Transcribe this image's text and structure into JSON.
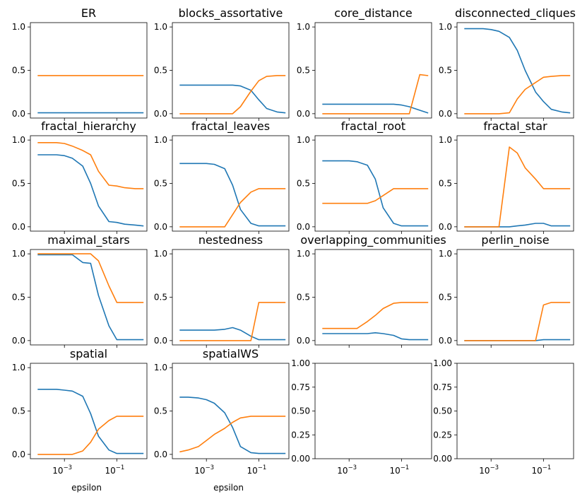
{
  "figure": {
    "background": "#ffffff"
  },
  "colors": {
    "series_a": "#1f77b4",
    "series_b": "#ff7f0e"
  },
  "chart_data": [
    {
      "type": "line",
      "title": "ER",
      "xlabel": "",
      "xscale": "log",
      "x": [
        0.0001,
        0.0002,
        0.0005,
        0.001,
        0.002,
        0.005,
        0.01,
        0.02,
        0.05,
        0.1,
        0.2,
        0.5,
        1.0
      ],
      "series": [
        {
          "values": [
            0.01,
            0.01,
            0.01,
            0.01,
            0.01,
            0.01,
            0.01,
            0.01,
            0.01,
            0.01,
            0.01,
            0.01,
            0.01
          ]
        },
        {
          "values": [
            0.44,
            0.44,
            0.44,
            0.44,
            0.44,
            0.44,
            0.44,
            0.44,
            0.44,
            0.44,
            0.44,
            0.44,
            0.44
          ]
        }
      ],
      "ylim": [
        -0.05,
        1.05
      ],
      "yticks": [
        "0.0",
        "0.5",
        "1.0"
      ],
      "xticks": []
    },
    {
      "type": "line",
      "title": "blocks_assortative",
      "xlabel": "",
      "xscale": "log",
      "x": [
        0.0001,
        0.0002,
        0.0005,
        0.001,
        0.002,
        0.005,
        0.01,
        0.02,
        0.05,
        0.1,
        0.2,
        0.5,
        1.0
      ],
      "series": [
        {
          "values": [
            0.33,
            0.33,
            0.33,
            0.33,
            0.33,
            0.33,
            0.33,
            0.32,
            0.27,
            0.16,
            0.06,
            0.02,
            0.01
          ]
        },
        {
          "values": [
            0.0,
            0.0,
            0.0,
            0.0,
            0.0,
            0.0,
            0.0,
            0.08,
            0.26,
            0.38,
            0.43,
            0.44,
            0.44
          ]
        }
      ],
      "ylim": [
        -0.05,
        1.05
      ],
      "yticks": [
        "0.0",
        "0.5",
        "1.0"
      ],
      "xticks": []
    },
    {
      "type": "line",
      "title": "core_distance",
      "xlabel": "",
      "xscale": "log",
      "x": [
        0.0001,
        0.0002,
        0.0005,
        0.001,
        0.002,
        0.005,
        0.01,
        0.02,
        0.05,
        0.1,
        0.2,
        0.5,
        1.0
      ],
      "series": [
        {
          "values": [
            0.11,
            0.11,
            0.11,
            0.11,
            0.11,
            0.11,
            0.11,
            0.11,
            0.11,
            0.1,
            0.08,
            0.04,
            0.01
          ]
        },
        {
          "values": [
            0.0,
            0.0,
            0.0,
            0.0,
            0.0,
            0.0,
            0.0,
            0.0,
            0.0,
            0.0,
            0.0,
            0.45,
            0.44
          ]
        }
      ],
      "ylim": [
        -0.05,
        1.05
      ],
      "yticks": [
        "0.0",
        "0.5",
        "1.0"
      ],
      "xticks": []
    },
    {
      "type": "line",
      "title": "disconnected_cliques",
      "xlabel": "",
      "xscale": "log",
      "x": [
        0.0001,
        0.0002,
        0.0005,
        0.001,
        0.002,
        0.005,
        0.01,
        0.02,
        0.05,
        0.1,
        0.2,
        0.5,
        1.0
      ],
      "series": [
        {
          "values": [
            0.98,
            0.98,
            0.98,
            0.97,
            0.95,
            0.88,
            0.73,
            0.5,
            0.25,
            0.14,
            0.05,
            0.02,
            0.01
          ]
        },
        {
          "values": [
            0.0,
            0.0,
            0.0,
            0.0,
            0.0,
            0.01,
            0.17,
            0.28,
            0.36,
            0.42,
            0.43,
            0.44,
            0.44
          ]
        }
      ],
      "ylim": [
        -0.05,
        1.05
      ],
      "yticks": [
        "0.0",
        "0.5",
        "1.0"
      ],
      "xticks": []
    },
    {
      "type": "line",
      "title": "fractal_hierarchy",
      "xlabel": "",
      "xscale": "log",
      "x": [
        0.0001,
        0.0002,
        0.0005,
        0.001,
        0.002,
        0.005,
        0.01,
        0.02,
        0.05,
        0.1,
        0.2,
        0.5,
        1.0
      ],
      "series": [
        {
          "values": [
            0.83,
            0.83,
            0.83,
            0.82,
            0.79,
            0.7,
            0.5,
            0.24,
            0.06,
            0.05,
            0.03,
            0.02,
            0.01
          ]
        },
        {
          "values": [
            0.97,
            0.97,
            0.97,
            0.96,
            0.93,
            0.88,
            0.83,
            0.64,
            0.48,
            0.47,
            0.45,
            0.44,
            0.44
          ]
        }
      ],
      "ylim": [
        -0.05,
        1.05
      ],
      "yticks": [
        "0.0",
        "0.5",
        "1.0"
      ],
      "xticks": []
    },
    {
      "type": "line",
      "title": "fractal_leaves",
      "xlabel": "",
      "xscale": "log",
      "x": [
        0.0001,
        0.0002,
        0.0005,
        0.001,
        0.002,
        0.005,
        0.01,
        0.02,
        0.05,
        0.1,
        0.2,
        0.5,
        1.0
      ],
      "series": [
        {
          "values": [
            0.73,
            0.73,
            0.73,
            0.73,
            0.72,
            0.67,
            0.48,
            0.2,
            0.04,
            0.01,
            0.01,
            0.01,
            0.01
          ]
        },
        {
          "values": [
            0.0,
            0.0,
            0.0,
            0.0,
            0.0,
            0.0,
            0.14,
            0.28,
            0.4,
            0.44,
            0.44,
            0.44,
            0.44
          ]
        }
      ],
      "ylim": [
        -0.05,
        1.05
      ],
      "yticks": [
        "0.0",
        "0.5",
        "1.0"
      ],
      "xticks": []
    },
    {
      "type": "line",
      "title": "fractal_root",
      "xlabel": "",
      "xscale": "log",
      "x": [
        0.0001,
        0.0002,
        0.0005,
        0.001,
        0.002,
        0.005,
        0.01,
        0.02,
        0.05,
        0.1,
        0.2,
        0.5,
        1.0
      ],
      "series": [
        {
          "values": [
            0.76,
            0.76,
            0.76,
            0.76,
            0.75,
            0.71,
            0.55,
            0.22,
            0.04,
            0.01,
            0.01,
            0.01,
            0.01
          ]
        },
        {
          "values": [
            0.27,
            0.27,
            0.27,
            0.27,
            0.27,
            0.27,
            0.3,
            0.36,
            0.44,
            0.44,
            0.44,
            0.44,
            0.44
          ]
        }
      ],
      "ylim": [
        -0.05,
        1.05
      ],
      "yticks": [
        "0.0",
        "0.5",
        "1.0"
      ],
      "xticks": []
    },
    {
      "type": "line",
      "title": "fractal_star",
      "xlabel": "",
      "xscale": "log",
      "x": [
        0.0001,
        0.0002,
        0.0005,
        0.001,
        0.002,
        0.005,
        0.01,
        0.02,
        0.05,
        0.1,
        0.2,
        0.5,
        1.0
      ],
      "series": [
        {
          "values": [
            0.0,
            0.0,
            0.0,
            0.0,
            0.0,
            0.0,
            0.01,
            0.02,
            0.04,
            0.04,
            0.01,
            0.01,
            0.01
          ]
        },
        {
          "values": [
            0.0,
            0.0,
            0.0,
            0.0,
            0.0,
            0.92,
            0.85,
            0.68,
            0.55,
            0.44,
            0.44,
            0.44,
            0.44
          ]
        }
      ],
      "ylim": [
        -0.05,
        1.05
      ],
      "yticks": [
        "0.0",
        "0.5",
        "1.0"
      ],
      "xticks": []
    },
    {
      "type": "line",
      "title": "maximal_stars",
      "xlabel": "",
      "xscale": "log",
      "x": [
        0.0001,
        0.0002,
        0.0005,
        0.001,
        0.002,
        0.005,
        0.01,
        0.02,
        0.05,
        0.1,
        0.2,
        0.5,
        1.0
      ],
      "series": [
        {
          "values": [
            0.99,
            0.99,
            0.99,
            0.99,
            0.99,
            0.9,
            0.89,
            0.52,
            0.17,
            0.01,
            0.01,
            0.01,
            0.01
          ]
        },
        {
          "values": [
            1.0,
            1.0,
            1.0,
            1.0,
            1.0,
            1.0,
            1.0,
            0.92,
            0.63,
            0.44,
            0.44,
            0.44,
            0.44
          ]
        }
      ],
      "ylim": [
        -0.05,
        1.05
      ],
      "yticks": [
        "0.0",
        "0.5",
        "1.0"
      ],
      "xticks": []
    },
    {
      "type": "line",
      "title": "nestedness",
      "xlabel": "",
      "xscale": "log",
      "x": [
        0.0001,
        0.0002,
        0.0005,
        0.001,
        0.002,
        0.005,
        0.01,
        0.02,
        0.05,
        0.1,
        0.2,
        0.5,
        1.0
      ],
      "series": [
        {
          "values": [
            0.12,
            0.12,
            0.12,
            0.12,
            0.12,
            0.13,
            0.15,
            0.12,
            0.05,
            0.01,
            0.01,
            0.01,
            0.01
          ]
        },
        {
          "values": [
            0.0,
            0.0,
            0.0,
            0.0,
            0.0,
            0.0,
            0.0,
            0.0,
            0.0,
            0.44,
            0.44,
            0.44,
            0.44
          ]
        }
      ],
      "ylim": [
        -0.05,
        1.05
      ],
      "yticks": [
        "0.0",
        "0.5",
        "1.0"
      ],
      "xticks": []
    },
    {
      "type": "line",
      "title": "overlapping_communities",
      "xlabel": "",
      "xscale": "log",
      "x": [
        0.0001,
        0.0002,
        0.0005,
        0.001,
        0.002,
        0.005,
        0.01,
        0.02,
        0.05,
        0.1,
        0.2,
        0.5,
        1.0
      ],
      "series": [
        {
          "values": [
            0.08,
            0.08,
            0.08,
            0.08,
            0.08,
            0.08,
            0.09,
            0.08,
            0.06,
            0.02,
            0.01,
            0.01,
            0.01
          ]
        },
        {
          "values": [
            0.14,
            0.14,
            0.14,
            0.14,
            0.14,
            0.22,
            0.29,
            0.37,
            0.43,
            0.44,
            0.44,
            0.44,
            0.44
          ]
        }
      ],
      "ylim": [
        -0.05,
        1.05
      ],
      "yticks": [
        "0.0",
        "0.5",
        "1.0"
      ],
      "xticks": []
    },
    {
      "type": "line",
      "title": "perlin_noise",
      "xlabel": "",
      "xscale": "log",
      "x": [
        0.0001,
        0.0002,
        0.0005,
        0.001,
        0.002,
        0.005,
        0.01,
        0.02,
        0.05,
        0.1,
        0.2,
        0.5,
        1.0
      ],
      "series": [
        {
          "values": [
            0.0,
            0.0,
            0.0,
            0.0,
            0.0,
            0.0,
            0.0,
            0.0,
            0.0,
            0.01,
            0.01,
            0.01,
            0.01
          ]
        },
        {
          "values": [
            0.0,
            0.0,
            0.0,
            0.0,
            0.0,
            0.0,
            0.0,
            0.0,
            0.0,
            0.41,
            0.44,
            0.44,
            0.44
          ]
        }
      ],
      "ylim": [
        -0.05,
        1.05
      ],
      "yticks": [
        "0.0",
        "0.5",
        "1.0"
      ],
      "xticks": []
    },
    {
      "type": "line",
      "title": "spatial",
      "xlabel": "epsilon",
      "xscale": "log",
      "x": [
        0.0001,
        0.0002,
        0.0005,
        0.001,
        0.002,
        0.005,
        0.01,
        0.02,
        0.05,
        0.1,
        0.2,
        0.5,
        1.0
      ],
      "series": [
        {
          "values": [
            0.75,
            0.75,
            0.75,
            0.74,
            0.73,
            0.67,
            0.47,
            0.21,
            0.05,
            0.01,
            0.01,
            0.01,
            0.01
          ]
        },
        {
          "values": [
            0.0,
            0.0,
            0.0,
            0.0,
            0.0,
            0.04,
            0.14,
            0.29,
            0.39,
            0.44,
            0.44,
            0.44,
            0.44
          ]
        }
      ],
      "ylim": [
        -0.05,
        1.05
      ],
      "yticks": [
        "0.0",
        "0.5",
        "1.0"
      ],
      "xticks": [
        {
          "base": "10",
          "exp": "−3"
        },
        {
          "base": "10",
          "exp": "−1"
        }
      ]
    },
    {
      "type": "line",
      "title": "spatialWS",
      "xlabel": "epsilon",
      "xscale": "log",
      "x": [
        0.0001,
        0.0002,
        0.0005,
        0.001,
        0.002,
        0.005,
        0.01,
        0.02,
        0.05,
        0.1,
        0.2,
        0.5,
        1.0
      ],
      "series": [
        {
          "values": [
            0.66,
            0.66,
            0.65,
            0.63,
            0.59,
            0.48,
            0.31,
            0.09,
            0.02,
            0.01,
            0.01,
            0.01,
            0.01
          ]
        },
        {
          "values": [
            0.03,
            0.05,
            0.09,
            0.16,
            0.23,
            0.3,
            0.37,
            0.42,
            0.44,
            0.44,
            0.44,
            0.44,
            0.44
          ]
        }
      ],
      "ylim": [
        -0.05,
        1.05
      ],
      "yticks": [
        "0.0",
        "0.5",
        "1.0"
      ],
      "xticks": [
        {
          "base": "10",
          "exp": "−3"
        },
        {
          "base": "10",
          "exp": "−1"
        }
      ]
    },
    {
      "type": "line",
      "title": "",
      "xlabel": "",
      "xscale": "log",
      "x": [],
      "series": [],
      "ylim": [
        0,
        1
      ],
      "yticks": [
        "0.00",
        "0.25",
        "0.50",
        "0.75",
        "1.00"
      ],
      "xticks": [
        {
          "base": "10",
          "exp": "−3"
        },
        {
          "base": "10",
          "exp": "−1"
        }
      ]
    },
    {
      "type": "line",
      "title": "",
      "xlabel": "",
      "xscale": "log",
      "x": [],
      "series": [],
      "ylim": [
        0,
        1
      ],
      "yticks": [
        "0.00",
        "0.25",
        "0.50",
        "0.75",
        "1.00"
      ],
      "xticks": [
        {
          "base": "10",
          "exp": "−3"
        },
        {
          "base": "10",
          "exp": "−1"
        }
      ]
    }
  ]
}
